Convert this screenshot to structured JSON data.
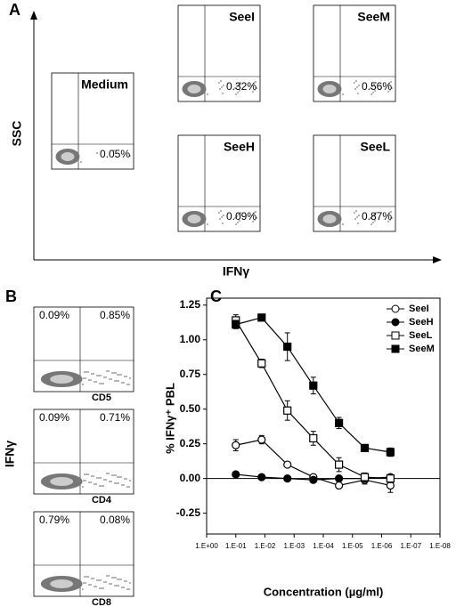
{
  "panels": {
    "A": {
      "label": "A",
      "y_axis": "SSC",
      "x_axis": "IFNγ",
      "plots": [
        {
          "name": "Medium",
          "percent": "0.05%"
        },
        {
          "name": "SeeI",
          "percent": "0.32%"
        },
        {
          "name": "SeeM",
          "percent": "0.56%"
        },
        {
          "name": "SeeH",
          "percent": "0.09%"
        },
        {
          "name": "SeeL",
          "percent": "0.87%"
        }
      ]
    },
    "B": {
      "label": "B",
      "y_axis": "IFNγ",
      "plots": [
        {
          "x_axis": "CD5",
          "upper_left": "0.09%",
          "upper_right": "0.85%"
        },
        {
          "x_axis": "CD4",
          "upper_left": "0.09%",
          "upper_right": "0.71%"
        },
        {
          "x_axis": "CD8",
          "upper_left": "0.79%",
          "upper_right": "0.08%"
        }
      ]
    }
  },
  "chart_data": {
    "type": "line",
    "label": "C",
    "y_label": "% IFNγ⁺ PBL",
    "x_label": "Concentration (µg/ml)",
    "x_log": true,
    "x": [
      0.1,
      0.013,
      0.0017,
      0.00022,
      2.9e-05,
      3.8e-06,
      5e-07
    ],
    "xlim": [
      1,
      1e-08
    ],
    "xticks": [
      {
        "value": 1,
        "label": "1.E+00"
      },
      {
        "value": 0.1,
        "label": "1.E-01"
      },
      {
        "value": 0.01,
        "label": "1.E-02"
      },
      {
        "value": 0.001,
        "label": "1.E-03"
      },
      {
        "value": 0.0001,
        "label": "1.E-04"
      },
      {
        "value": 1e-05,
        "label": "1.E-05"
      },
      {
        "value": 1e-06,
        "label": "1.E-06"
      },
      {
        "value": 1e-07,
        "label": "1.E-07"
      },
      {
        "value": 1e-08,
        "label": "1.E-08"
      }
    ],
    "ylim": [
      -0.4,
      1.3
    ],
    "yticks": [
      -0.25,
      {
        "value": 0,
        "label": "0.00"
      },
      0.25,
      {
        "value": 0.5,
        "label": "0.50"
      },
      0.75,
      {
        "value": 1,
        "label": "1.00"
      },
      1.25
    ],
    "zero_line": true,
    "legend": "top-right",
    "series": [
      {
        "name": "SeeI",
        "color": "#000000",
        "marker": "circle",
        "marker_fill": "#ffffff",
        "values": [
          0.24,
          0.28,
          0.1,
          0.01,
          -0.05,
          -0.01,
          -0.05
        ],
        "errors": [
          0.04,
          0.03,
          0.01,
          0.01,
          0.02,
          0.03,
          0.05
        ]
      },
      {
        "name": "SeeH",
        "color": "#000000",
        "marker": "circle",
        "marker_fill": "#000000",
        "values": [
          0.03,
          0.01,
          0.0,
          -0.01,
          0.0,
          0.0,
          0.01
        ],
        "errors": [
          0.01,
          0.01,
          0.01,
          0.01,
          0.01,
          0.01,
          0.01
        ]
      },
      {
        "name": "SeeL",
        "color": "#000000",
        "marker": "square",
        "marker_fill": "#ffffff",
        "values": [
          1.14,
          0.83,
          0.49,
          0.29,
          0.1,
          0.01,
          0.0
        ],
        "errors": [
          0.04,
          0.03,
          0.07,
          0.05,
          0.05,
          0.03,
          0.03
        ]
      },
      {
        "name": "SeeM",
        "color": "#000000",
        "marker": "square",
        "marker_fill": "#000000",
        "values": [
          1.11,
          1.16,
          0.95,
          0.67,
          0.4,
          0.22,
          0.19
        ],
        "errors": [
          0.03,
          0.01,
          0.1,
          0.06,
          0.04,
          0.02,
          0.03
        ]
      }
    ]
  }
}
